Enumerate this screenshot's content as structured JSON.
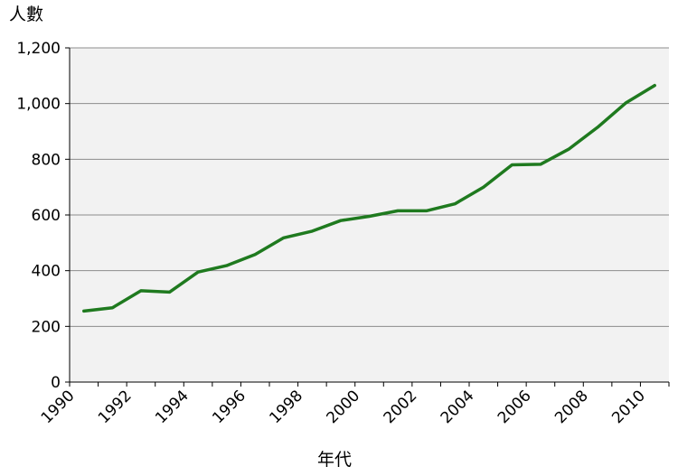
{
  "chart_data": {
    "type": "line",
    "title": "",
    "ylabel": "人數",
    "xlabel": "年代",
    "xlim": [
      1990,
      2011
    ],
    "ylim": [
      0,
      1200
    ],
    "x_ticks": [
      "1990",
      "1992",
      "1994",
      "1996",
      "1998",
      "2000",
      "2002",
      "2004",
      "2006",
      "2008",
      "2010"
    ],
    "y_ticks": [
      "0",
      "200",
      "400",
      "600",
      "800",
      "1,000",
      "1,200"
    ],
    "grid": true,
    "legend": "none",
    "line_color": "#1f7a1f",
    "plot_background": "#f2f2f2",
    "series": [
      {
        "x": [
          1990.5,
          1991.5,
          1992.5,
          1993.5,
          1994.5,
          1995.5,
          1996.5,
          1997.5,
          1998.5,
          1999.5,
          2000.5,
          2001.5,
          2002.5,
          2003.5,
          2004.5,
          2005.5,
          2006.5,
          2007.5,
          2008.5,
          2009.5,
          2010.5
        ],
        "values": [
          255,
          267,
          328,
          323,
          395,
          418,
          458,
          518,
          542,
          580,
          595,
          615,
          615,
          640,
          700,
          780,
          782,
          837,
          915,
          1003,
          1065
        ]
      }
    ]
  }
}
